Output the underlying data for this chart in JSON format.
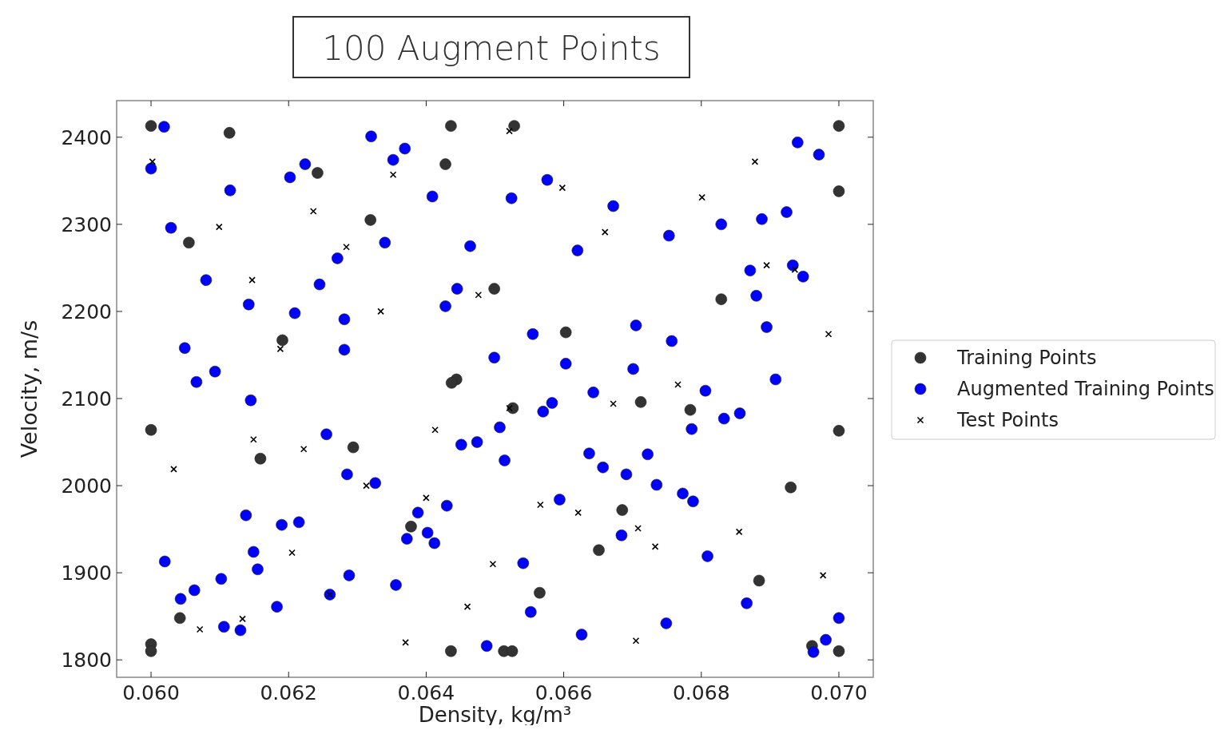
{
  "chart_data": {
    "type": "scatter",
    "title": "100 Augment Points",
    "xlabel": "Density, kg/m³",
    "ylabel": "Velocity, m/s",
    "xlim": [
      0.0595,
      0.0705
    ],
    "ylim": [
      1780,
      2442
    ],
    "xticks": [
      {
        "value": 0.06,
        "label": "0.060"
      },
      {
        "value": 0.062,
        "label": "0.062"
      },
      {
        "value": 0.064,
        "label": "0.064"
      },
      {
        "value": 0.066,
        "label": "0.066"
      },
      {
        "value": 0.068,
        "label": "0.068"
      },
      {
        "value": 0.07,
        "label": "0.070"
      }
    ],
    "yticks": [
      1800,
      1900,
      2000,
      2100,
      2200,
      2300,
      2400
    ],
    "grid": false,
    "legend": "right",
    "series": [
      {
        "name": "Training Points",
        "color": "#333333",
        "marker": "circle",
        "x": [
          0.06,
          0.06114,
          0.06436,
          0.06528,
          0.07,
          0.06242,
          0.06428,
          0.07,
          0.06319,
          0.06055,
          0.06499,
          0.06829,
          0.06191,
          0.06603,
          0.06444,
          0.06437,
          0.06526,
          0.06712,
          0.06784,
          0.06,
          0.07,
          0.06294,
          0.06159,
          0.0693,
          0.06685,
          0.06378,
          0.06651,
          0.06565,
          0.06884,
          0.06042,
          0.06,
          0.06,
          0.06436,
          0.06513,
          0.06525,
          0.07,
          0.06961
        ],
        "values": [
          2413,
          2405,
          2413,
          2413,
          2413,
          2359,
          2369,
          2338,
          2305,
          2279,
          2226,
          2214,
          2167,
          2176,
          2122,
          2118,
          2089,
          2096,
          2087,
          2064,
          2063,
          2044,
          2031,
          1998,
          1972,
          1953,
          1926,
          1877,
          1891,
          1848,
          1818,
          1810,
          1810,
          1810,
          1810,
          1810,
          1816
        ]
      },
      {
        "name": "Augmented Training Points",
        "color": "#0000ff",
        "marker": "circle",
        "x": [
          0.06019,
          0.06,
          0.0632,
          0.06369,
          0.06352,
          0.06224,
          0.06202,
          0.06115,
          0.06409,
          0.06524,
          0.06576,
          0.06672,
          0.06029,
          0.0634,
          0.06464,
          0.0662,
          0.06753,
          0.06829,
          0.06888,
          0.06924,
          0.0694,
          0.06971,
          0.06271,
          0.06245,
          0.0608,
          0.06445,
          0.06142,
          0.06209,
          0.06281,
          0.06428,
          0.06871,
          0.06933,
          0.06948,
          0.0688,
          0.06895,
          0.06705,
          0.06555,
          0.06757,
          0.06049,
          0.06281,
          0.06499,
          0.06603,
          0.06093,
          0.06066,
          0.06908,
          0.06701,
          0.06145,
          0.06643,
          0.06806,
          0.06583,
          0.0657,
          0.06833,
          0.06856,
          0.06786,
          0.06255,
          0.06507,
          0.06451,
          0.06474,
          0.06514,
          0.06637,
          0.06657,
          0.06691,
          0.06722,
          0.06735,
          0.06773,
          0.06788,
          0.06285,
          0.06326,
          0.06594,
          0.0643,
          0.06388,
          0.06372,
          0.06402,
          0.06412,
          0.06138,
          0.0619,
          0.06215,
          0.06149,
          0.06155,
          0.0602,
          0.06102,
          0.06063,
          0.06043,
          0.06288,
          0.06356,
          0.06183,
          0.06106,
          0.0613,
          0.06541,
          0.06684,
          0.06809,
          0.06552,
          0.06866,
          0.06749,
          0.06626,
          0.06488,
          0.07,
          0.06981,
          0.06963,
          0.0626
        ],
        "values": [
          2412,
          2364,
          2401,
          2387,
          2374,
          2369,
          2354,
          2339,
          2332,
          2330,
          2351,
          2321,
          2296,
          2279,
          2275,
          2270,
          2287,
          2300,
          2306,
          2314,
          2394,
          2380,
          2261,
          2231,
          2236,
          2226,
          2208,
          2198,
          2191,
          2206,
          2247,
          2253,
          2240,
          2218,
          2182,
          2184,
          2174,
          2166,
          2158,
          2156,
          2147,
          2140,
          2131,
          2119,
          2122,
          2134,
          2098,
          2107,
          2109,
          2095,
          2085,
          2077,
          2083,
          2065,
          2059,
          2067,
          2047,
          2050,
          2029,
          2037,
          2021,
          2013,
          2036,
          2001,
          1991,
          1982,
          2013,
          2003,
          1984,
          1977,
          1969,
          1939,
          1946,
          1934,
          1966,
          1955,
          1958,
          1924,
          1904,
          1913,
          1893,
          1880,
          1870,
          1897,
          1886,
          1861,
          1838,
          1834,
          1911,
          1943,
          1919,
          1855,
          1865,
          1842,
          1829,
          1816,
          1848,
          1823,
          1809,
          1875
        ]
      },
      {
        "name": "Test Points",
        "color": "#000000",
        "marker": "cross",
        "x": [
          0.06002,
          0.06521,
          0.06352,
          0.06236,
          0.06099,
          0.06284,
          0.06147,
          0.06334,
          0.06476,
          0.06598,
          0.0666,
          0.06801,
          0.06878,
          0.06895,
          0.06936,
          0.06985,
          0.06188,
          0.06766,
          0.06672,
          0.06413,
          0.06521,
          0.06149,
          0.06222,
          0.06033,
          0.06313,
          0.064,
          0.06566,
          0.06621,
          0.06708,
          0.06733,
          0.06855,
          0.06497,
          0.06205,
          0.0626,
          0.06977,
          0.0646,
          0.06133,
          0.06071,
          0.0637,
          0.06705
        ],
        "values": [
          2372,
          2407,
          2357,
          2315,
          2297,
          2274,
          2236,
          2200,
          2219,
          2342,
          2291,
          2331,
          2372,
          2253,
          2248,
          2174,
          2157,
          2116,
          2094,
          2064,
          2089,
          2053,
          2042,
          2019,
          2000,
          1986,
          1978,
          1969,
          1951,
          1930,
          1947,
          1910,
          1923,
          1875,
          1897,
          1861,
          1847,
          1835,
          1820,
          1822
        ]
      }
    ]
  }
}
